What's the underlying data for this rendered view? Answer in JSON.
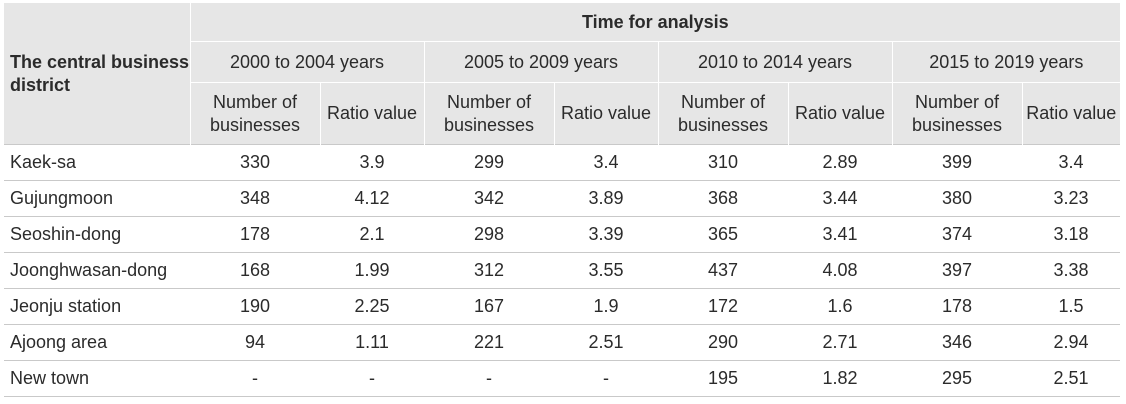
{
  "header": {
    "corner": "The central business district",
    "time_title": "Time for analysis",
    "periods": [
      "2000 to 2004 years",
      "2005 to 2009 years",
      "2010 to 2014 years",
      "2015 to 2019 years"
    ],
    "col_businesses": "Number of businesses",
    "col_ratio": "Ratio value"
  },
  "rows": [
    {
      "district": "Kaek-sa",
      "values": [
        "330",
        "3.9",
        "299",
        "3.4",
        "310",
        "2.89",
        "399",
        "3.4"
      ]
    },
    {
      "district": "Gujungmoon",
      "values": [
        "348",
        "4.12",
        "342",
        "3.89",
        "368",
        "3.44",
        "380",
        "3.23"
      ]
    },
    {
      "district": "Seoshin-dong",
      "values": [
        "178",
        "2.1",
        "298",
        "3.39",
        "365",
        "3.41",
        "374",
        "3.18"
      ]
    },
    {
      "district": "Joonghwasan-dong",
      "values": [
        "168",
        "1.99",
        "312",
        "3.55",
        "437",
        "4.08",
        "397",
        "3.38"
      ]
    },
    {
      "district": "Jeonju station",
      "values": [
        "190",
        "2.25",
        "167",
        "1.9",
        "172",
        "1.6",
        "178",
        "1.5"
      ]
    },
    {
      "district": "Ajoong area",
      "values": [
        "94",
        "1.11",
        "221",
        "2.51",
        "290",
        "2.71",
        "346",
        "2.94"
      ]
    },
    {
      "district": "New town",
      "values": [
        "-",
        "-",
        "-",
        "-",
        "195",
        "1.82",
        "295",
        "2.51"
      ]
    }
  ]
}
